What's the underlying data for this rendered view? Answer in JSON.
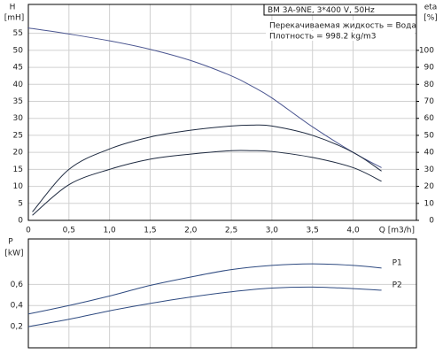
{
  "chart_data": [
    {
      "type": "line",
      "title": "BM 3A-9NE, 3*400 V, 50Hz",
      "annotations": [
        "Перекачиваемая жидкость = Вода",
        "Плотность = 998.2 kg/m3"
      ],
      "y_label": "H",
      "y_unit": "[mH]",
      "y2_label": "eta",
      "y2_unit": "[%]",
      "x_label": "Q [m3/h]",
      "x": [
        0,
        0.05,
        0.5,
        1.0,
        1.5,
        2.0,
        2.5,
        2.75,
        3.0,
        3.5,
        4.0,
        4.35
      ],
      "xlim": [
        0,
        4.78
      ],
      "ylim": [
        0,
        63.5
      ],
      "y2lim": [
        0,
        127
      ],
      "xticks": [
        0,
        {
          "value": 0.5,
          "label": "0,5"
        },
        {
          "value": 1.0,
          "label": "1,0"
        },
        {
          "value": 1.5,
          "label": "1,5"
        },
        {
          "value": 2.0,
          "label": "2,0"
        },
        {
          "value": 2.5,
          "label": "2,5"
        },
        {
          "value": 3.0,
          "label": "3,0"
        },
        {
          "value": 3.5,
          "label": "3,5"
        },
        {
          "value": 4.0,
          "label": "4,0"
        }
      ],
      "yticks": [
        0,
        5,
        10,
        15,
        20,
        25,
        30,
        35,
        40,
        45,
        50,
        55
      ],
      "y2ticks": [
        0,
        10,
        20,
        30,
        40,
        50,
        60,
        70,
        80,
        90,
        100
      ],
      "grid": true,
      "series": [
        {
          "color": "#4a5590",
          "values": [
            56.5,
            56.4,
            54.8,
            52.8,
            50.3,
            47,
            42.5,
            39.5,
            36,
            27.5,
            20,
            15.5
          ]
        },
        {
          "color": "#1e2a40",
          "axis": "y2",
          "values": [
            null,
            5,
            30,
            42,
            49,
            53,
            55.5,
            56,
            55.5,
            50,
            40,
            29
          ]
        },
        {
          "color": "#1e2a40",
          "axis": "y2",
          "values": [
            null,
            3,
            21,
            30,
            36,
            39,
            41,
            41,
            40.5,
            37,
            31,
            23
          ]
        }
      ]
    },
    {
      "type": "line",
      "y_label": "P",
      "y_unit": "[kW]",
      "x": [
        0,
        0.5,
        1.0,
        1.5,
        2.0,
        2.5,
        3.0,
        3.5,
        4.0,
        4.35
      ],
      "xlim": [
        0,
        4.78
      ],
      "ylim": [
        0,
        1.03
      ],
      "xticks": [
        0,
        0.5,
        1.0,
        1.5,
        2.0,
        2.5,
        3.0,
        3.5,
        4.0
      ],
      "yticks": [
        {
          "value": 0.2,
          "label": "0,2"
        },
        {
          "value": 0.4,
          "label": "0,4"
        },
        {
          "value": 0.6,
          "label": "0,6"
        }
      ],
      "grid": true,
      "series": [
        {
          "name": "P1",
          "color": "#2e4a80",
          "values": [
            0.32,
            0.4,
            0.49,
            0.59,
            0.67,
            0.74,
            0.78,
            0.795,
            0.78,
            0.755
          ]
        },
        {
          "name": "P2",
          "color": "#2e4a80",
          "values": [
            0.2,
            0.27,
            0.35,
            0.42,
            0.48,
            0.53,
            0.565,
            0.575,
            0.56,
            0.545
          ]
        }
      ]
    }
  ]
}
